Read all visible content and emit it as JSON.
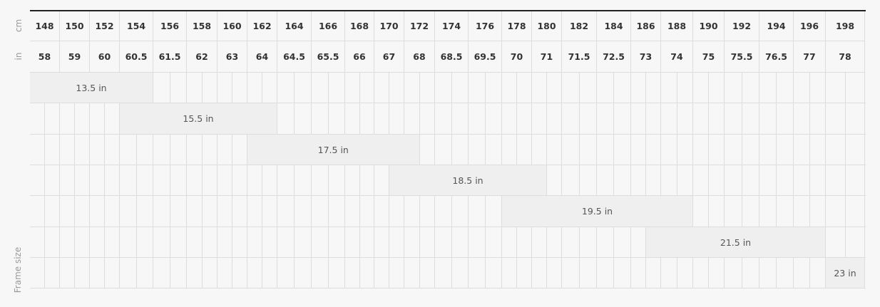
{
  "row_labels": {
    "cm": "cm",
    "in": "in",
    "frame": "Frame size"
  },
  "cm": [
    "148",
    "150",
    "152",
    "154",
    "156",
    "158",
    "160",
    "162",
    "164",
    "166",
    "168",
    "170",
    "172",
    "174",
    "176",
    "178",
    "180",
    "182",
    "184",
    "186",
    "188",
    "190",
    "192",
    "194",
    "196",
    "198"
  ],
  "in": [
    "58",
    "59",
    "60",
    "60.5",
    "61.5",
    "62",
    "63",
    "64",
    "64.5",
    "65.5",
    "66",
    "67",
    "68",
    "68.5",
    "69.5",
    "70",
    "71",
    "71.5",
    "72.5",
    "73",
    "74",
    "75",
    "75.5",
    "76.5",
    "77",
    "78"
  ],
  "frames": [
    {
      "label": "13.5 in",
      "from_cm": 148,
      "to_cm": 156
    },
    {
      "label": "15.5 in",
      "from_cm": 154,
      "to_cm": 164
    },
    {
      "label": "17.5 in",
      "from_cm": 162,
      "to_cm": 173
    },
    {
      "label": "18.5 in",
      "from_cm": 171,
      "to_cm": 181
    },
    {
      "label": "19.5 in",
      "from_cm": 178,
      "to_cm": 190
    },
    {
      "label": "21.5 in",
      "from_cm": 187,
      "to_cm": 198
    },
    {
      "label": "23 in",
      "from_cm": 198,
      "to_cm": 200
    }
  ],
  "colors": {
    "bar": "#efefef",
    "grid": "#dddddd",
    "background": "#f7f7f7"
  }
}
